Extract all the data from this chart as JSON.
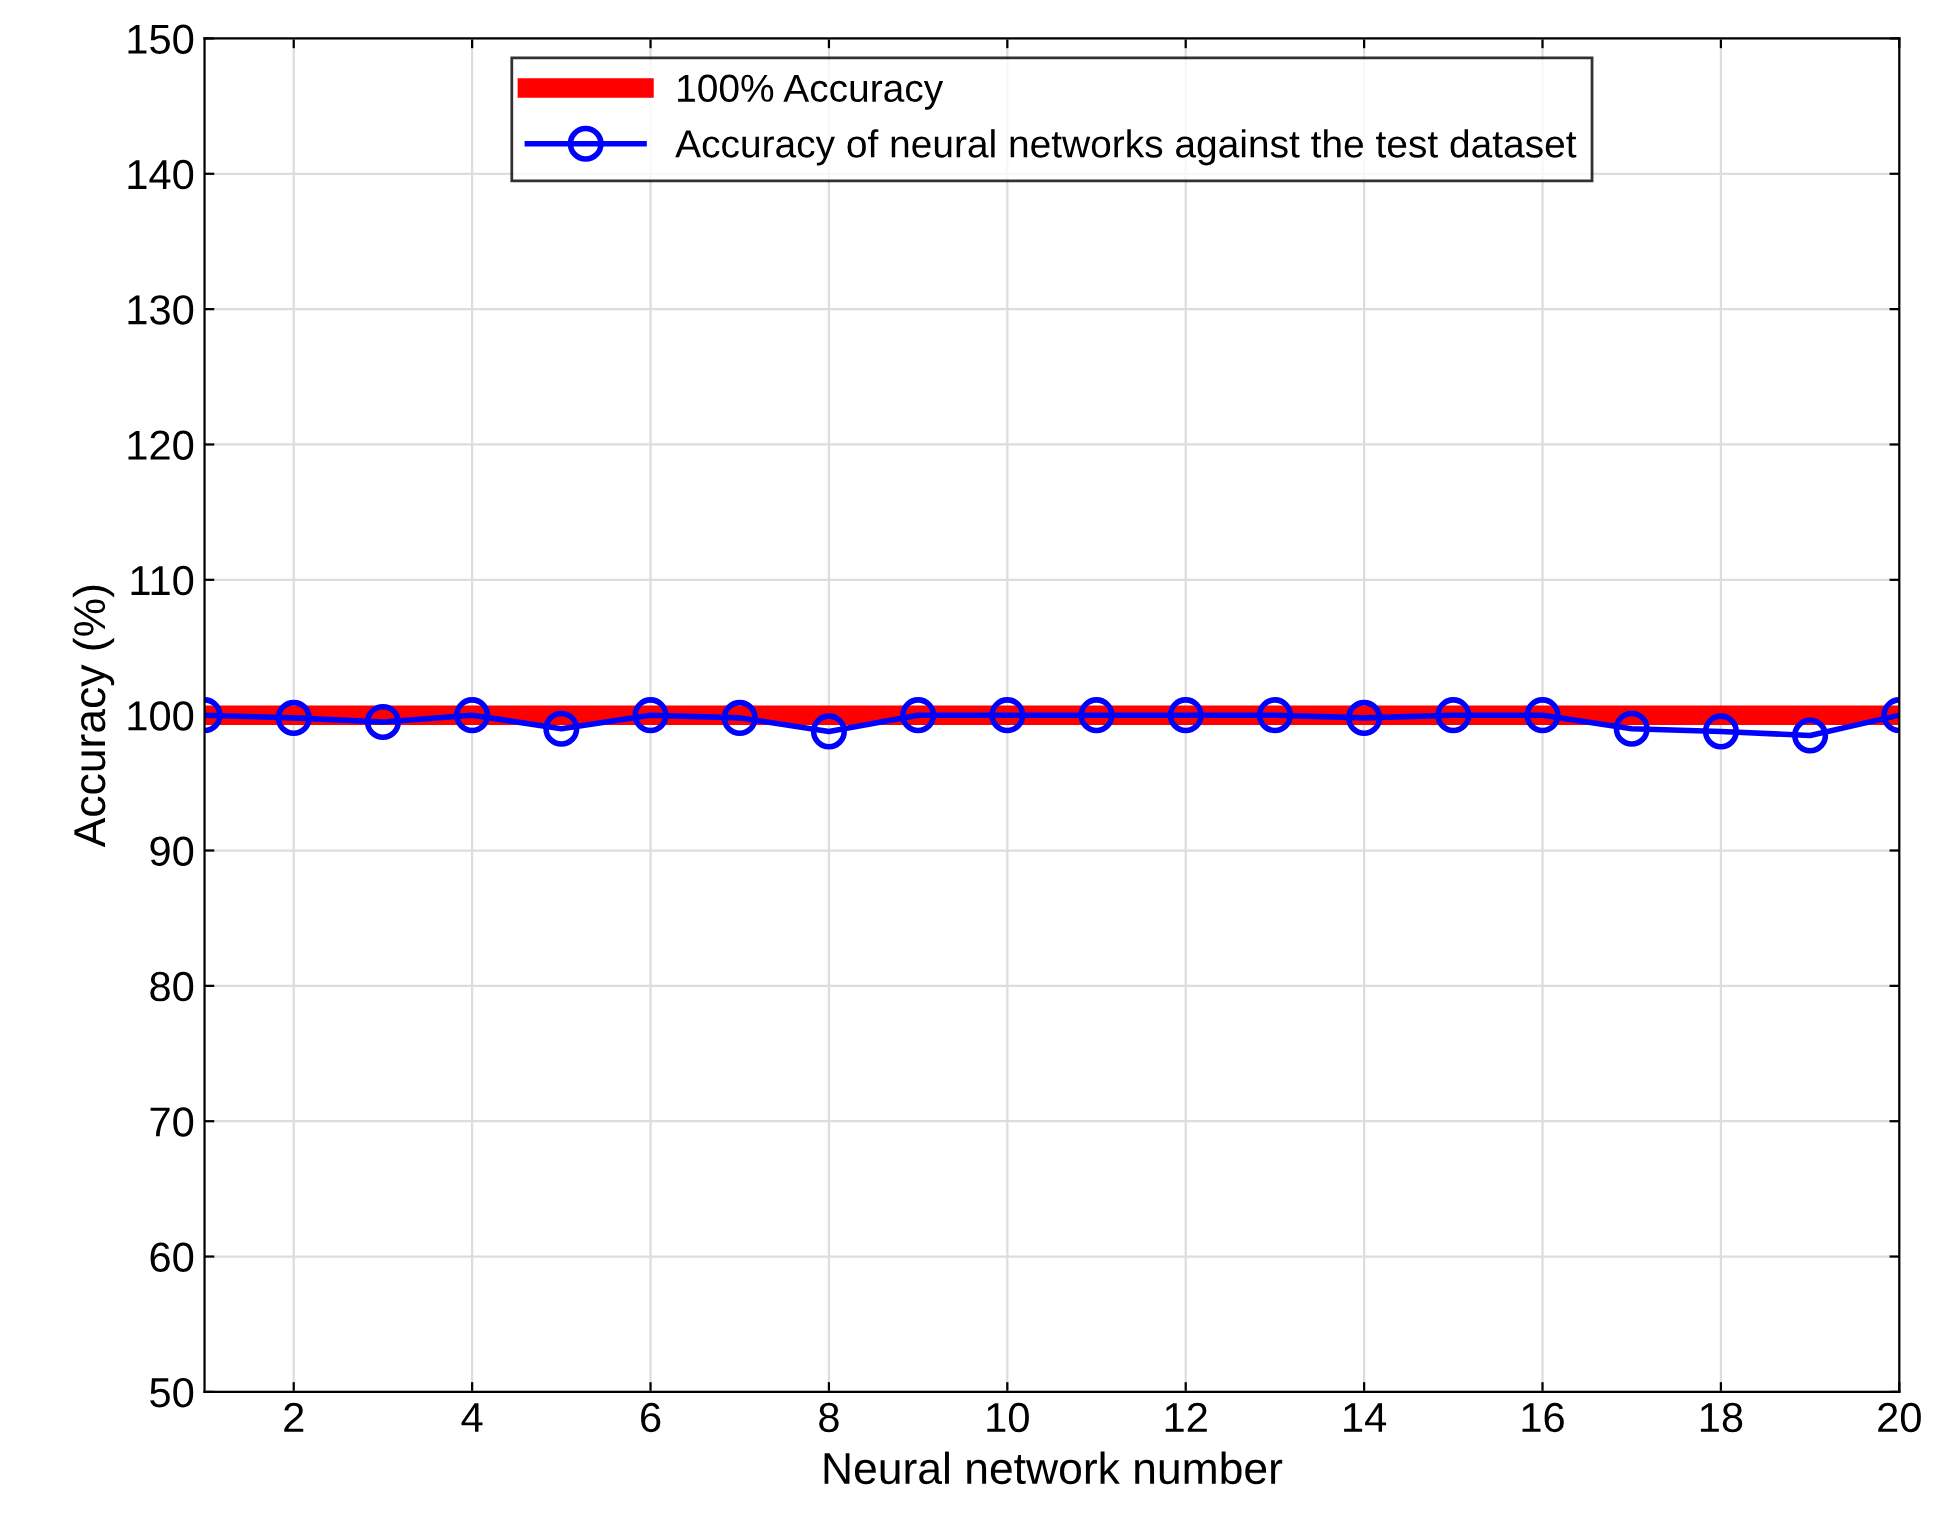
{
  "chart_data": {
    "type": "line",
    "xlabel": "Neural network number",
    "ylabel": "Accuracy (%)",
    "x": [
      1,
      2,
      3,
      4,
      5,
      6,
      7,
      8,
      9,
      10,
      11,
      12,
      13,
      14,
      15,
      16,
      17,
      18,
      19,
      20
    ],
    "series": [
      {
        "name": "100% Accuracy",
        "color": "#ff0000",
        "marker": "none",
        "values": [
          100,
          100,
          100,
          100,
          100,
          100,
          100,
          100,
          100,
          100,
          100,
          100,
          100,
          100,
          100,
          100,
          100,
          100,
          100,
          100
        ]
      },
      {
        "name": "Accuracy of neural networks against the test dataset",
        "color": "#0000ff",
        "marker": "circle",
        "values": [
          100,
          99.8,
          99.5,
          100,
          99,
          100,
          99.8,
          98.8,
          100,
          100,
          100,
          100,
          100,
          99.8,
          100,
          100,
          99,
          98.8,
          98.5,
          100
        ]
      }
    ],
    "xlim": [
      1,
      20
    ],
    "xticks": [
      2,
      4,
      6,
      8,
      10,
      12,
      14,
      16,
      18,
      20
    ],
    "ylim": [
      50,
      150
    ],
    "yticks": [
      50,
      60,
      70,
      80,
      90,
      100,
      110,
      120,
      130,
      140,
      150
    ],
    "grid": true,
    "legend": "top"
  }
}
